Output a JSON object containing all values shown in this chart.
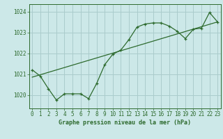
{
  "title": "Graphe pression niveau de la mer (hPa)",
  "bg_color": "#cce8e8",
  "grid_color": "#aacccc",
  "line_color": "#2d6a2d",
  "x_ticks": [
    0,
    1,
    2,
    3,
    4,
    5,
    6,
    7,
    8,
    9,
    10,
    11,
    12,
    13,
    14,
    15,
    16,
    17,
    18,
    19,
    20,
    21,
    22,
    23
  ],
  "y_ticks": [
    1020,
    1021,
    1022,
    1023,
    1024
  ],
  "ylim": [
    1019.35,
    1024.35
  ],
  "xlim": [
    -0.4,
    23.4
  ],
  "line1_x": [
    0,
    1,
    2,
    3,
    4,
    5,
    6,
    7,
    8,
    9,
    10,
    11,
    12,
    13,
    14,
    15,
    16,
    17,
    18,
    19,
    20,
    21,
    22,
    23
  ],
  "line1_y": [
    1021.2,
    1020.9,
    1020.3,
    1019.75,
    1020.05,
    1020.05,
    1020.05,
    1019.82,
    1020.55,
    1021.45,
    1021.95,
    1022.15,
    1022.65,
    1023.25,
    1023.4,
    1023.45,
    1023.45,
    1023.3,
    1023.05,
    1022.7,
    1023.15,
    1023.2,
    1023.95,
    1023.5
  ],
  "line2_x": [
    0,
    23
  ],
  "line2_y": [
    1020.85,
    1023.5
  ],
  "marker": "+"
}
